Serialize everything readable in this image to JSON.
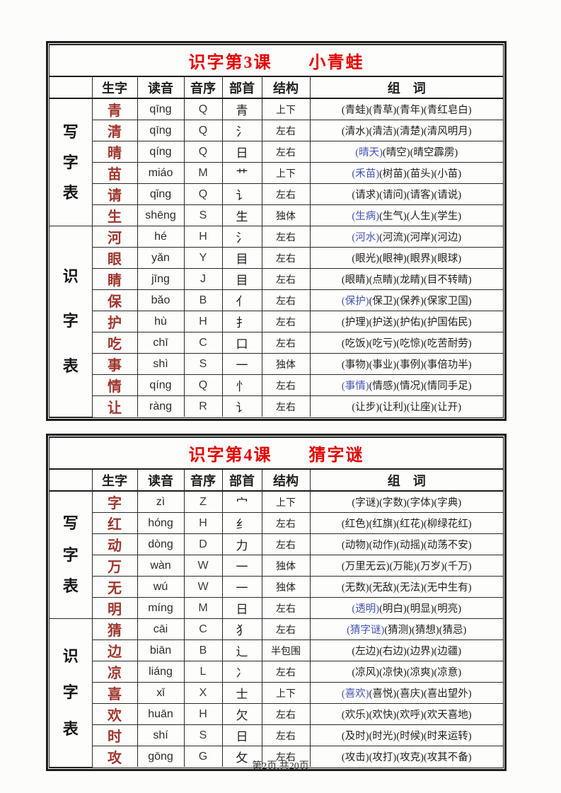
{
  "footer": "第2页,共20页",
  "colors": {
    "title_red": "#e50000",
    "char_red": "#9e372e",
    "highlight_blue": "#4553b4"
  },
  "tables": [
    {
      "title": "识字第3课　　小青蛙",
      "headers": [
        "生字",
        "读音",
        "音序",
        "部首",
        "结构",
        "组　词"
      ],
      "groups": [
        {
          "label": "写字表",
          "rows": [
            {
              "char": "青",
              "pinyin": "qīng",
              "initial": "Q",
              "radical": "青",
              "structure": "上下",
              "words": [
                {
                  "t": "(青蛙)(青草)(青年)(青红皂白)",
                  "hl": false
                }
              ]
            },
            {
              "char": "清",
              "pinyin": "qīng",
              "initial": "Q",
              "radical": "氵",
              "structure": "左右",
              "words": [
                {
                  "t": "(清水)(清洁)(清楚)(清风明月)",
                  "hl": false
                }
              ]
            },
            {
              "char": "晴",
              "pinyin": "qíng",
              "initial": "Q",
              "radical": "日",
              "structure": "左右",
              "words": [
                {
                  "t": "(晴天)",
                  "hl": true
                },
                {
                  "t": "(晴空)(晴空霹雳)",
                  "hl": false
                }
              ]
            },
            {
              "char": "苗",
              "pinyin": "miáo",
              "initial": "M",
              "radical": "艹",
              "structure": "上下",
              "words": [
                {
                  "t": "(禾苗)",
                  "hl": true
                },
                {
                  "t": "(树苗)(苗头)(小苗)",
                  "hl": false
                }
              ]
            },
            {
              "char": "请",
              "pinyin": "qǐng",
              "initial": "Q",
              "radical": "讠",
              "structure": "左右",
              "words": [
                {
                  "t": "(请求)(请问)(请客)(请说)",
                  "hl": false
                }
              ]
            },
            {
              "char": "生",
              "pinyin": "shēng",
              "initial": "S",
              "radical": "生",
              "structure": "独体",
              "words": [
                {
                  "t": "(生病)",
                  "hl": true
                },
                {
                  "t": "(生气)(人生)(学生)",
                  "hl": false
                }
              ]
            }
          ]
        },
        {
          "label": "识字表",
          "rows": [
            {
              "char": "河",
              "pinyin": "hé",
              "initial": "H",
              "radical": "氵",
              "structure": "左右",
              "words": [
                {
                  "t": "(河水)",
                  "hl": true
                },
                {
                  "t": "(河流)(河岸)(河边)",
                  "hl": false
                }
              ]
            },
            {
              "char": "眼",
              "pinyin": "yǎn",
              "initial": "Y",
              "radical": "目",
              "structure": "左右",
              "words": [
                {
                  "t": "(眼光)(眼神)(眼界)(眼球)",
                  "hl": false
                }
              ]
            },
            {
              "char": "睛",
              "pinyin": "jīng",
              "initial": "J",
              "radical": "目",
              "structure": "左右",
              "words": [
                {
                  "t": "(眼睛)(点睛)(龙睛)(目不转睛)",
                  "hl": false
                }
              ]
            },
            {
              "char": "保",
              "pinyin": "bǎo",
              "initial": "B",
              "radical": "亻",
              "structure": "左右",
              "words": [
                {
                  "t": "(保护)",
                  "hl": true
                },
                {
                  "t": "(保卫)(保养)(保家卫国)",
                  "hl": false
                }
              ]
            },
            {
              "char": "护",
              "pinyin": "hù",
              "initial": "H",
              "radical": "扌",
              "structure": "左右",
              "words": [
                {
                  "t": "(护理)(护送)(护佑)(护国佑民)",
                  "hl": false
                }
              ]
            },
            {
              "char": "吃",
              "pinyin": "chī",
              "initial": "C",
              "radical": "口",
              "structure": "左右",
              "words": [
                {
                  "t": "(吃饭)(吃亏)(吃惊)(吃苦耐劳)",
                  "hl": false
                }
              ]
            },
            {
              "char": "事",
              "pinyin": "shì",
              "initial": "S",
              "radical": "一",
              "structure": "独体",
              "words": [
                {
                  "t": "(事物)(事业)(事例)(事倍功半)",
                  "hl": false
                }
              ]
            },
            {
              "char": "情",
              "pinyin": "qíng",
              "initial": "Q",
              "radical": "忄",
              "structure": "左右",
              "words": [
                {
                  "t": "(事情)",
                  "hl": true
                },
                {
                  "t": "(情感)(情况)(情同手足)",
                  "hl": false
                }
              ]
            },
            {
              "char": "让",
              "pinyin": "ràng",
              "initial": "R",
              "radical": "讠",
              "structure": "左右",
              "words": [
                {
                  "t": "(让步)(让利)(让座)(让开)",
                  "hl": false
                }
              ]
            }
          ]
        }
      ]
    },
    {
      "title": "识字第4课　　猜字谜",
      "headers": [
        "生字",
        "读音",
        "音序",
        "部首",
        "结构",
        "组　词"
      ],
      "groups": [
        {
          "label": "写字表",
          "rows": [
            {
              "char": "字",
              "pinyin": "zì",
              "initial": "Z",
              "radical": "宀",
              "structure": "上下",
              "words": [
                {
                  "t": "(字谜)(字数)(字体)(字典)",
                  "hl": false
                }
              ]
            },
            {
              "char": "红",
              "pinyin": "hóng",
              "initial": "H",
              "radical": "纟",
              "structure": "左右",
              "words": [
                {
                  "t": "(红色)(红旗)(红花)(柳绿花红)",
                  "hl": false
                }
              ]
            },
            {
              "char": "动",
              "pinyin": "dòng",
              "initial": "D",
              "radical": "力",
              "structure": "左右",
              "words": [
                {
                  "t": "(动物)(动作)(动摇)(动荡不安)",
                  "hl": false
                }
              ]
            },
            {
              "char": "万",
              "pinyin": "wàn",
              "initial": "W",
              "radical": "一",
              "structure": "独体",
              "words": [
                {
                  "t": "(万里无云)(万能)(万岁)(千万)",
                  "hl": false
                }
              ]
            },
            {
              "char": "无",
              "pinyin": "wú",
              "initial": "W",
              "radical": "一",
              "structure": "独体",
              "words": [
                {
                  "t": "(无数)(无敌)(无法)(无中生有)",
                  "hl": false
                }
              ]
            },
            {
              "char": "明",
              "pinyin": "míng",
              "initial": "M",
              "radical": "日",
              "structure": "左右",
              "words": [
                {
                  "t": "(透明)",
                  "hl": true
                },
                {
                  "t": "(明白)(明显)(明亮)",
                  "hl": false
                }
              ]
            }
          ]
        },
        {
          "label": "识字表",
          "rows": [
            {
              "char": "猜",
              "pinyin": "cāi",
              "initial": "C",
              "radical": "犭",
              "structure": "左右",
              "words": [
                {
                  "t": "(猜字谜)",
                  "hl": true
                },
                {
                  "t": "(猜测)(猜想)(猜忌)",
                  "hl": false
                }
              ]
            },
            {
              "char": "边",
              "pinyin": "biān",
              "initial": "B",
              "radical": "辶",
              "structure": "半包围",
              "words": [
                {
                  "t": "(左边)(右边)(边界)(边疆)",
                  "hl": false
                }
              ]
            },
            {
              "char": "凉",
              "pinyin": "liáng",
              "initial": "L",
              "radical": "冫",
              "structure": "左右",
              "words": [
                {
                  "t": "(凉风)(凉快)(凉爽)(凉意)",
                  "hl": false
                }
              ]
            },
            {
              "char": "喜",
              "pinyin": "xǐ",
              "initial": "X",
              "radical": "士",
              "structure": "上下",
              "words": [
                {
                  "t": "(喜欢)",
                  "hl": true
                },
                {
                  "t": "(喜悦)(喜庆)(喜出望外)",
                  "hl": false
                }
              ]
            },
            {
              "char": "欢",
              "pinyin": "huān",
              "initial": "H",
              "radical": "欠",
              "structure": "左右",
              "words": [
                {
                  "t": "(欢乐)(欢快)(欢呼)(欢天喜地)",
                  "hl": false
                }
              ]
            },
            {
              "char": "时",
              "pinyin": "shí",
              "initial": "S",
              "radical": "日",
              "structure": "左右",
              "words": [
                {
                  "t": "(及时)(时光)(时候)(时来运转)",
                  "hl": false
                }
              ]
            },
            {
              "char": "攻",
              "pinyin": "gōng",
              "initial": "G",
              "radical": "攵",
              "structure": "左右",
              "words": [
                {
                  "t": "(攻击)(攻打)(攻克)(攻其不备)",
                  "hl": false
                }
              ]
            }
          ]
        }
      ]
    }
  ]
}
